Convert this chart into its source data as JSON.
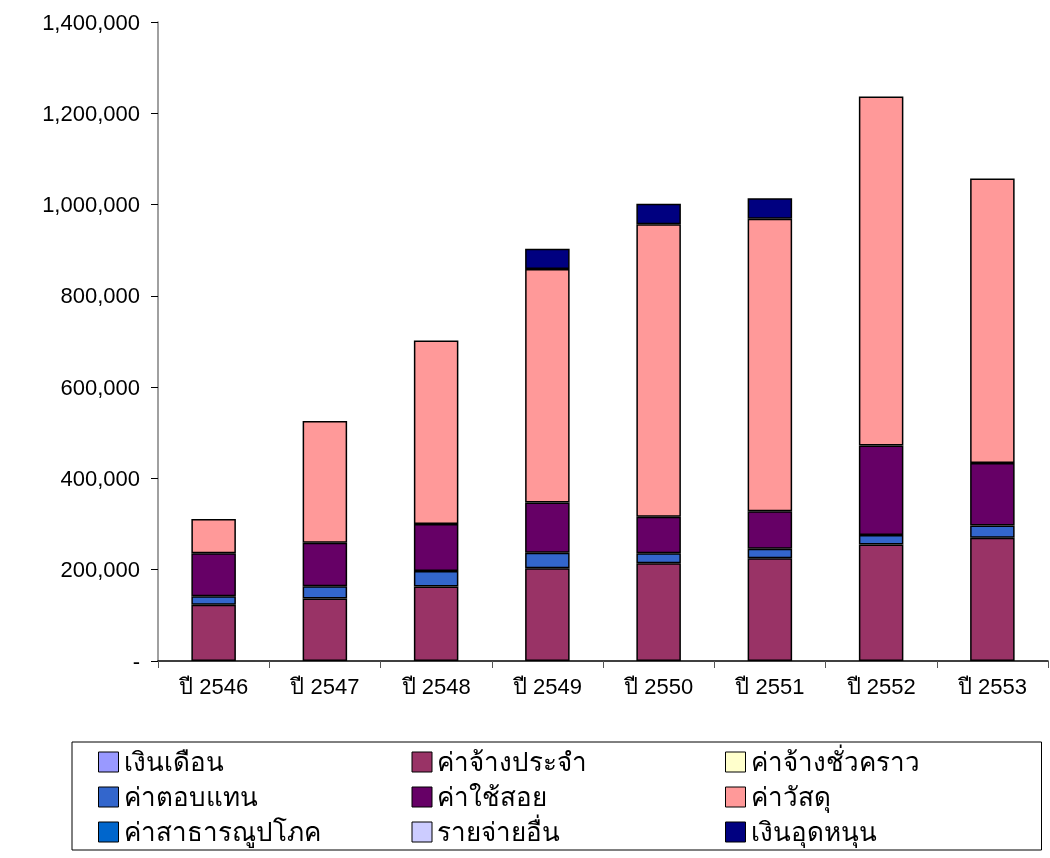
{
  "chart_data": {
    "type": "bar",
    "stacked": true,
    "categories": [
      "ปี 2546",
      "ปี 2547",
      "ปี 2548",
      "ปี 2549",
      "ปี 2550",
      "ปี 2551",
      "ปี 2552",
      "ปี 2553"
    ],
    "series": [
      {
        "name": "เงินเดือน",
        "color": "#9999ff",
        "values": [
          null,
          null,
          null,
          null,
          null,
          null,
          null,
          null
        ]
      },
      {
        "name": "ค่าจ้างประจำ",
        "color": "#993366",
        "values": [
          123000,
          137000,
          163000,
          203000,
          214000,
          225000,
          255000,
          270000
        ]
      },
      {
        "name": "ค่าจ้างชั่วคราว",
        "color": "#ffffcc",
        "values": [
          null,
          null,
          null,
          null,
          null,
          null,
          null,
          null
        ]
      },
      {
        "name": "ค่าตอบแทน",
        "color": "#3366cc",
        "values": [
          19000,
          27000,
          34000,
          34000,
          22000,
          21000,
          21000,
          27000
        ]
      },
      {
        "name": "ค่าใช้สอย",
        "color": "#660066",
        "values": [
          94000,
          95000,
          103000,
          110000,
          80000,
          82000,
          196000,
          137000
        ]
      },
      {
        "name": "ค่าวัสดุ",
        "color": "#ff9999",
        "values": [
          75000,
          267000,
          402000,
          512000,
          641000,
          641000,
          765000,
          623000
        ]
      },
      {
        "name": "ค่าสาธารณูปโภค",
        "color": "#0066cc",
        "values": [
          null,
          null,
          null,
          null,
          null,
          null,
          null,
          null
        ]
      },
      {
        "name": "รายจ่ายอื่น",
        "color": "#ccccff",
        "values": [
          null,
          null,
          null,
          null,
          null,
          null,
          null,
          null
        ]
      },
      {
        "name": "เงินอุดหนุน",
        "color": "#000080",
        "values": [
          null,
          null,
          null,
          44000,
          45000,
          45000,
          null,
          null
        ]
      }
    ],
    "ylim": [
      0,
      1400000
    ],
    "yticks": [
      {
        "value": 0,
        "label": "-"
      },
      {
        "value": 200000,
        "label": "200,000"
      },
      {
        "value": 400000,
        "label": "400,000"
      },
      {
        "value": 600000,
        "label": "600,000"
      },
      {
        "value": 800000,
        "label": "800,000"
      },
      {
        "value": 1000000,
        "label": "1,000,000"
      },
      {
        "value": 1200000,
        "label": "1,200,000"
      },
      {
        "value": 1400000,
        "label": "1,400,000"
      }
    ],
    "grid": false,
    "legend": "bottom"
  }
}
